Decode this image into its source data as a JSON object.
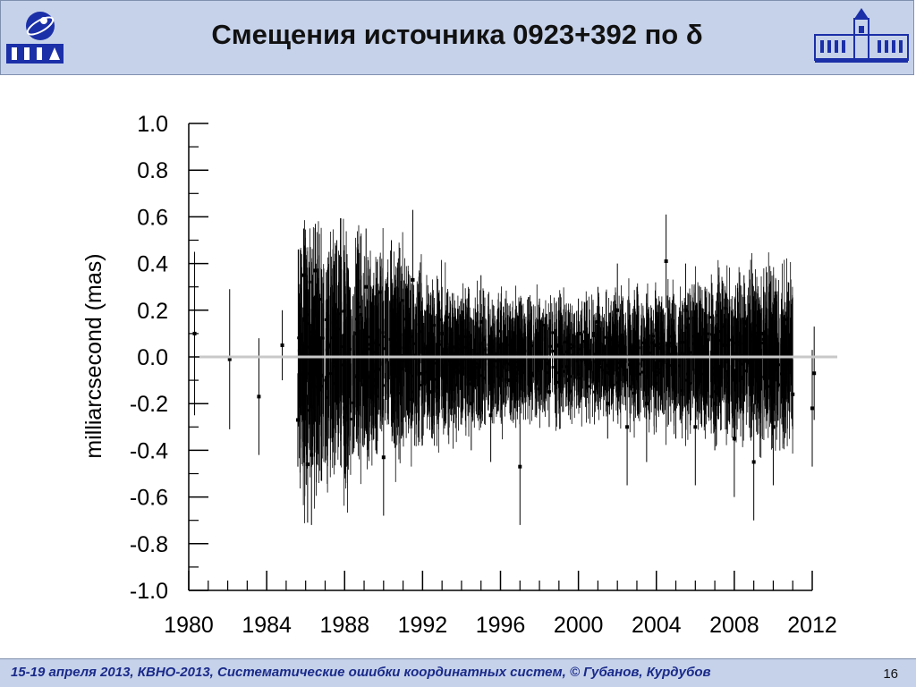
{
  "header": {
    "title": "Смещения источника 0923+392 по δ"
  },
  "colors": {
    "header_bg": "#c6d2ea",
    "logo_blue": "#1b2fa8",
    "data": "#000000",
    "zero_line": "#c8c8c8",
    "footer_text": "#1a2a8a"
  },
  "icons": {
    "left_logo": "ipa-logo-icon",
    "right_logo": "observatory-building-icon"
  },
  "chart_data": {
    "type": "scatter",
    "subtype": "error-bars",
    "title": "",
    "xlabel": "",
    "ylabel": "milliarcsecond (mas)",
    "xlim": [
      1980,
      2012
    ],
    "ylim": [
      -1.0,
      1.0
    ],
    "x_ticks": [
      "1980",
      "1984",
      "1988",
      "1992",
      "1996",
      "2000",
      "2004",
      "2008",
      "2012"
    ],
    "y_ticks": [
      "1.0",
      "0.8",
      "0.6",
      "0.4",
      "0.2",
      "0.0",
      "-0.2",
      "-0.4",
      "-0.6",
      "-0.8",
      "-1.0"
    ],
    "zero_line": 0.0,
    "grid": false,
    "legend": "none",
    "series": [
      {
        "points": [
          [
            1980.3,
            0.1,
            0.35
          ],
          [
            1982.1,
            -0.01,
            0.3
          ],
          [
            1983.6,
            -0.17,
            0.25
          ],
          [
            1984.8,
            0.05,
            0.15
          ],
          [
            1985.6,
            -0.27,
            0.2
          ],
          [
            1985.9,
            0.35,
            0.2
          ],
          [
            1986.1,
            -0.46,
            0.25
          ],
          [
            1986.3,
            -0.42,
            0.3
          ],
          [
            1986.5,
            0.37,
            0.2
          ],
          [
            1986.8,
            -0.08,
            0.45
          ],
          [
            1987.2,
            0.05,
            0.4
          ],
          [
            1987.6,
            0.15,
            0.35
          ],
          [
            1988.0,
            -0.22,
            0.3
          ],
          [
            1988.6,
            0.1,
            0.3
          ],
          [
            1989.1,
            0.3,
            0.25
          ],
          [
            1989.6,
            -0.1,
            0.3
          ],
          [
            1990.0,
            -0.43,
            0.25
          ],
          [
            1990.4,
            0.2,
            0.3
          ],
          [
            1990.9,
            -0.05,
            0.3
          ],
          [
            1991.5,
            0.33,
            0.3
          ],
          [
            1992.0,
            0.0,
            0.2
          ],
          [
            1992.5,
            -0.15,
            0.2
          ],
          [
            1993.0,
            0.1,
            0.2
          ],
          [
            1993.5,
            -0.05,
            0.2
          ],
          [
            1994.0,
            0.05,
            0.2
          ],
          [
            1994.5,
            -0.2,
            0.2
          ],
          [
            1995.0,
            0.15,
            0.2
          ],
          [
            1995.5,
            -0.25,
            0.2
          ],
          [
            1996.0,
            0.05,
            0.15
          ],
          [
            1996.5,
            -0.1,
            0.15
          ],
          [
            1997.0,
            -0.47,
            0.25
          ],
          [
            1997.5,
            0.0,
            0.15
          ],
          [
            1998.0,
            0.1,
            0.15
          ],
          [
            1998.5,
            -0.15,
            0.15
          ],
          [
            1999.0,
            0.05,
            0.15
          ],
          [
            1999.5,
            -0.1,
            0.15
          ],
          [
            2000.0,
            0.1,
            0.15
          ],
          [
            2000.5,
            -0.05,
            0.15
          ],
          [
            2001.0,
            0.15,
            0.15
          ],
          [
            2001.5,
            -0.2,
            0.15
          ],
          [
            2002.0,
            0.2,
            0.2
          ],
          [
            2002.5,
            -0.3,
            0.25
          ],
          [
            2003.0,
            0.1,
            0.2
          ],
          [
            2003.5,
            -0.2,
            0.25
          ],
          [
            2004.0,
            0.05,
            0.2
          ],
          [
            2004.5,
            0.41,
            0.2
          ],
          [
            2005.0,
            -0.15,
            0.2
          ],
          [
            2005.5,
            0.2,
            0.2
          ],
          [
            2006.0,
            -0.3,
            0.25
          ],
          [
            2006.5,
            0.1,
            0.2
          ],
          [
            2007.0,
            -0.2,
            0.2
          ],
          [
            2007.5,
            0.05,
            0.2
          ],
          [
            2008.0,
            -0.35,
            0.25
          ],
          [
            2008.5,
            0.15,
            0.2
          ],
          [
            2009.0,
            -0.45,
            0.25
          ],
          [
            2009.5,
            0.1,
            0.2
          ],
          [
            2010.0,
            -0.3,
            0.25
          ],
          [
            2010.5,
            -0.1,
            0.2
          ],
          [
            2011.0,
            -0.16,
            0.15
          ],
          [
            2012.0,
            -0.22,
            0.25
          ],
          [
            2012.1,
            -0.07,
            0.2
          ]
        ]
      }
    ],
    "density_envelope": {
      "x_range": [
        1985.6,
        2011.0
      ],
      "noise_by_year": [
        [
          1985.6,
          0.35
        ],
        [
          1988,
          0.32
        ],
        [
          1990,
          0.28
        ],
        [
          1992,
          0.22
        ],
        [
          1996,
          0.17
        ],
        [
          2000,
          0.15
        ],
        [
          2004,
          0.18
        ],
        [
          2008,
          0.22
        ],
        [
          2011,
          0.24
        ]
      ]
    }
  },
  "footer": {
    "text": "15-19  апреля  2013,  КВНО-2013,  Систематические ошибки координатных систем, © Губанов, Курдубов",
    "page_number": "16"
  }
}
